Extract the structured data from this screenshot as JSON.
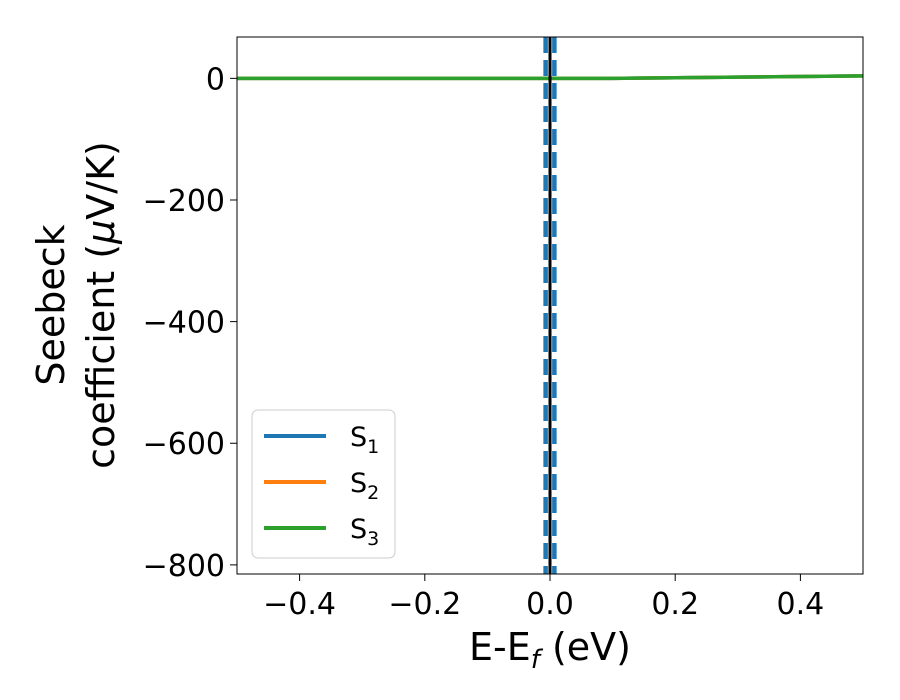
{
  "chart_data": {
    "type": "line",
    "xlabel": {
      "main": "E-E",
      "sub": "f",
      "suffix": " (eV)"
    },
    "ylabel": {
      "line1": "Seebeck",
      "line2_main": "coefficient  (",
      "line2_mu": "μ",
      "line2_suffix": "V/K)"
    },
    "xlim": [
      -0.5,
      0.5
    ],
    "ylim": [
      -815,
      68
    ],
    "x_ticks": [
      -0.4,
      -0.2,
      0.0,
      0.2,
      0.4
    ],
    "x_tick_labels": [
      "−0.4",
      "−0.2",
      "0.0",
      "0.2",
      "0.4"
    ],
    "y_ticks": [
      0,
      -200,
      -400,
      -600,
      -800
    ],
    "y_tick_labels": [
      "0",
      "−200",
      "−400",
      "−600",
      "−800"
    ],
    "legend_position": "lower-left",
    "series": [
      {
        "name": "S1",
        "name_main": "S",
        "name_sub": "1",
        "color": "#1f77b4",
        "x": [
          -0.5,
          -0.4,
          -0.3,
          -0.2,
          -0.1,
          0.0,
          0.1,
          0.2,
          0.3,
          0.4,
          0.5
        ],
        "y": [
          0,
          0,
          0,
          0,
          0,
          0,
          0,
          1,
          2,
          3,
          4
        ]
      },
      {
        "name": "S2",
        "name_main": "S",
        "name_sub": "2",
        "color": "#ff7f0e",
        "x": [
          -0.5,
          -0.4,
          -0.3,
          -0.2,
          -0.1,
          0.0,
          0.1,
          0.2,
          0.3,
          0.4,
          0.5
        ],
        "y": [
          0,
          0,
          0,
          0,
          0,
          0,
          0,
          1,
          2,
          3,
          4
        ]
      },
      {
        "name": "S3",
        "name_main": "S",
        "name_sub": "3",
        "color": "#2ca02c",
        "x": [
          -0.5,
          -0.4,
          -0.3,
          -0.2,
          -0.1,
          0.0,
          0.1,
          0.2,
          0.3,
          0.4,
          0.5
        ],
        "y": [
          0,
          0,
          0,
          0,
          0,
          0,
          0,
          1,
          2,
          3,
          4
        ]
      }
    ],
    "vertical_lines": [
      {
        "x": 0.0,
        "color": "#000000",
        "style": "solid"
      },
      {
        "x": -0.007,
        "color": "#1f77b4",
        "style": "dashed"
      },
      {
        "x": 0.007,
        "color": "#1f77b4",
        "style": "dashed"
      }
    ]
  }
}
